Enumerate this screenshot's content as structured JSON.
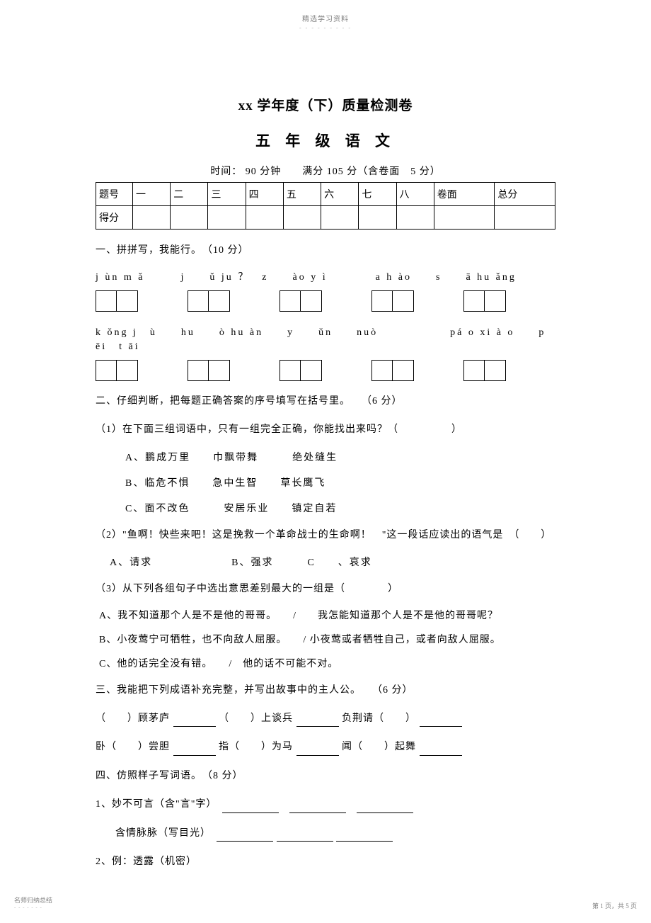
{
  "header": {
    "small_text": "精选学习资料",
    "dots": "- - - - - - - - -"
  },
  "titles": {
    "main": "xx 学年度（下）质量检测卷",
    "sub": "五 年 级 语 文",
    "time": "时间： 90 分钟　　满分 105 分（含卷面　5 分）"
  },
  "score_table": {
    "headers": [
      "题号",
      "一",
      "二",
      "三",
      "四",
      "五",
      "六",
      "七",
      "八",
      "卷面",
      "总分"
    ],
    "row_label": "得分"
  },
  "section1": {
    "heading": "一、拼拼写，我能行。　（10 分）",
    "pinyin_row1": "j ùn m ǎ　　　j　　ǔ ju ？　z　　ào y ì　　　　a h ào　　s　　ā hu ǎng",
    "pinyin_row2": "k ǒng j　ù　　hu　　ò hu àn　　y　　ǔn　　nuò　　　　　　pá o  xi à o　　p　ēi　t āi"
  },
  "section2": {
    "heading": "二、仔细判断，把每题正确答案的序号填写在括号里。　　（6 分）",
    "q1": "（1）在下面三组词语中，只有一组完全正确，你能找出来吗？（　　　　　）",
    "q1_a": "A、鹏成万里　　巾飘带舞　　　绝处缝生",
    "q1_b": "B、临危不惧　　急中生智　　草长鹰飞",
    "q1_c": "C、面不改色　　　安居乐业　　镇定自若",
    "q2": "（2）\"鱼啊！快些来吧！这是挽救一个革命战士的生命啊！　\"这一段话应读出的语气是　（　　）",
    "q2_opts": "A、请求　　　　　　　B、强求　　　C　　、哀求",
    "q3": "（3）从下列各组句子中选出意思差别最大的一组是（　　　　）",
    "q3_a": "A、我不知道那个人是不是他的哥哥。　　/　　我怎能知道那个人是不是他的哥哥呢？",
    "q3_b": "B、小夜莺宁可牺牲，也不向敌人屈服。　　/ 小夜莺或者牺牲自己，或者向敌人屈服。",
    "q3_c": "C、他的话完全没有错。　　/　他的话不可能不对。"
  },
  "section3": {
    "heading": "三、我能把下列成语补充完整，并写出故事中的主人公。　　（6 分）",
    "line1_a": "（　　）顾茅庐",
    "line1_b": "（　　）上谈兵",
    "line1_c": "负荆请（　　）",
    "line2_a": "卧（　　）尝胆",
    "line2_b": "指（　　）为马",
    "line2_c": "闻（　　）起舞"
  },
  "section4": {
    "heading": "四、仿照样子写词语。　（8 分）",
    "line1": "1、妙不可言（含\"言\"字）",
    "line2": "含情脉脉（写目光）",
    "line3": "2、例：透露（机密）"
  },
  "footer": {
    "left": "名师归纳总结",
    "left_dots": "- - - - - - -",
    "right": "第 1 页，共 5 页"
  }
}
